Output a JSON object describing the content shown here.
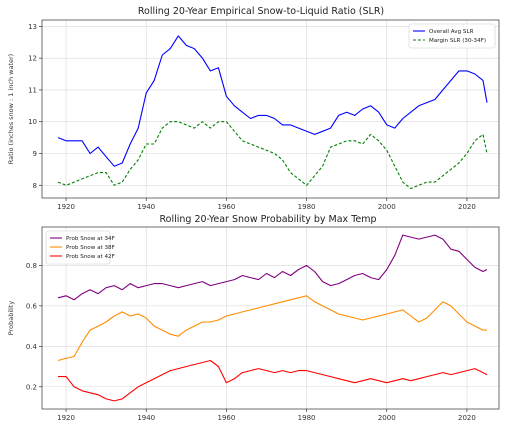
{
  "chart_data": [
    {
      "type": "line",
      "title": "Rolling 20-Year Empirical Snow-to-Liquid Ratio (SLR)",
      "xlabel": "",
      "ylabel": "Ratio (inches snow : 1 inch water)",
      "xlim": [
        1914,
        2028
      ],
      "ylim": [
        7.6,
        13.2
      ],
      "xticks": [
        1920,
        1940,
        1960,
        1980,
        2000,
        2020
      ],
      "yticks": [
        8,
        9,
        10,
        11,
        12,
        13
      ],
      "grid": true,
      "legend": "upper-right",
      "x": [
        1918,
        1920,
        1922,
        1924,
        1926,
        1928,
        1930,
        1932,
        1934,
        1936,
        1938,
        1940,
        1942,
        1944,
        1946,
        1948,
        1950,
        1952,
        1954,
        1956,
        1958,
        1960,
        1962,
        1964,
        1966,
        1968,
        1970,
        1972,
        1974,
        1976,
        1978,
        1980,
        1982,
        1984,
        1986,
        1988,
        1990,
        1992,
        1994,
        1996,
        1998,
        2000,
        2002,
        2004,
        2006,
        2008,
        2010,
        2012,
        2014,
        2016,
        2018,
        2020,
        2022,
        2024,
        2025
      ],
      "series": [
        {
          "name": "Overall Avg SLR",
          "color": "#0000ff",
          "style": "solid",
          "values": [
            9.5,
            9.4,
            9.4,
            9.4,
            9.0,
            9.2,
            8.9,
            8.6,
            8.7,
            9.3,
            9.8,
            10.9,
            11.3,
            12.1,
            12.3,
            12.7,
            12.4,
            12.3,
            12.0,
            11.6,
            11.7,
            10.8,
            10.5,
            10.3,
            10.1,
            10.2,
            10.2,
            10.1,
            9.9,
            9.9,
            9.8,
            9.7,
            9.6,
            9.7,
            9.8,
            10.2,
            10.3,
            10.2,
            10.4,
            10.5,
            10.3,
            9.9,
            9.8,
            10.1,
            10.3,
            10.5,
            10.6,
            10.7,
            11.0,
            11.3,
            11.6,
            11.6,
            11.5,
            11.3,
            10.6
          ]
        },
        {
          "name": "Margin SLR (30-34F)",
          "color": "#008000",
          "style": "dashed",
          "values": [
            8.1,
            8.0,
            8.1,
            8.2,
            8.3,
            8.4,
            8.4,
            8.0,
            8.1,
            8.5,
            8.8,
            9.3,
            9.3,
            9.8,
            10.0,
            10.0,
            9.9,
            9.8,
            10.0,
            9.8,
            10.0,
            10.0,
            9.7,
            9.4,
            9.3,
            9.2,
            9.1,
            9.0,
            8.8,
            8.4,
            8.2,
            8.0,
            8.3,
            8.6,
            9.2,
            9.3,
            9.4,
            9.4,
            9.3,
            9.6,
            9.4,
            9.1,
            8.6,
            8.1,
            7.9,
            8.0,
            8.1,
            8.1,
            8.3,
            8.5,
            8.7,
            9.0,
            9.4,
            9.6,
            9.0
          ]
        }
      ]
    },
    {
      "type": "line",
      "title": "Rolling 20-Year Snow Probability by Max Temp",
      "xlabel": "",
      "ylabel": "Probability",
      "xlim": [
        1914,
        2028
      ],
      "ylim": [
        0.09,
        0.99
      ],
      "xticks": [
        1920,
        1940,
        1960,
        1980,
        2000,
        2020
      ],
      "yticks": [
        0.2,
        0.4,
        0.6,
        0.8
      ],
      "grid": true,
      "legend": "upper-left",
      "x": [
        1918,
        1920,
        1922,
        1924,
        1926,
        1928,
        1930,
        1932,
        1934,
        1936,
        1938,
        1940,
        1942,
        1944,
        1946,
        1948,
        1950,
        1952,
        1954,
        1956,
        1958,
        1960,
        1962,
        1964,
        1966,
        1968,
        1970,
        1972,
        1974,
        1976,
        1978,
        1980,
        1982,
        1984,
        1986,
        1988,
        1990,
        1992,
        1994,
        1996,
        1998,
        2000,
        2002,
        2004,
        2006,
        2008,
        2010,
        2012,
        2014,
        2016,
        2018,
        2020,
        2022,
        2024,
        2025
      ],
      "series": [
        {
          "name": "Prob Snow at 34F",
          "color": "#800080",
          "style": "solid",
          "values": [
            0.64,
            0.65,
            0.63,
            0.66,
            0.68,
            0.66,
            0.69,
            0.7,
            0.68,
            0.71,
            0.69,
            0.7,
            0.71,
            0.71,
            0.7,
            0.69,
            0.7,
            0.71,
            0.72,
            0.7,
            0.71,
            0.72,
            0.73,
            0.75,
            0.74,
            0.73,
            0.76,
            0.74,
            0.77,
            0.75,
            0.78,
            0.8,
            0.77,
            0.72,
            0.7,
            0.71,
            0.73,
            0.75,
            0.76,
            0.74,
            0.73,
            0.78,
            0.85,
            0.95,
            0.94,
            0.93,
            0.94,
            0.95,
            0.93,
            0.88,
            0.87,
            0.83,
            0.79,
            0.77,
            0.78
          ]
        },
        {
          "name": "Prob Snow at 38F",
          "color": "#ff8c00",
          "style": "solid",
          "values": [
            0.33,
            0.34,
            0.35,
            0.42,
            0.48,
            0.5,
            0.52,
            0.55,
            0.57,
            0.55,
            0.56,
            0.54,
            0.5,
            0.48,
            0.46,
            0.45,
            0.48,
            0.5,
            0.52,
            0.52,
            0.53,
            0.55,
            0.56,
            0.57,
            0.58,
            0.59,
            0.6,
            0.61,
            0.62,
            0.63,
            0.64,
            0.65,
            0.62,
            0.6,
            0.58,
            0.56,
            0.55,
            0.54,
            0.53,
            0.54,
            0.55,
            0.56,
            0.57,
            0.58,
            0.55,
            0.52,
            0.54,
            0.58,
            0.62,
            0.6,
            0.56,
            0.52,
            0.5,
            0.48,
            0.48
          ]
        },
        {
          "name": "Prob Snow at 42F",
          "color": "#ff0000",
          "style": "solid",
          "values": [
            0.25,
            0.25,
            0.2,
            0.18,
            0.17,
            0.16,
            0.14,
            0.13,
            0.14,
            0.17,
            0.2,
            0.22,
            0.24,
            0.26,
            0.28,
            0.29,
            0.3,
            0.31,
            0.32,
            0.33,
            0.3,
            0.22,
            0.24,
            0.27,
            0.28,
            0.29,
            0.28,
            0.27,
            0.28,
            0.27,
            0.28,
            0.28,
            0.27,
            0.26,
            0.25,
            0.24,
            0.23,
            0.22,
            0.23,
            0.24,
            0.23,
            0.22,
            0.23,
            0.24,
            0.23,
            0.24,
            0.25,
            0.26,
            0.27,
            0.26,
            0.27,
            0.28,
            0.29,
            0.27,
            0.26
          ]
        }
      ]
    }
  ]
}
